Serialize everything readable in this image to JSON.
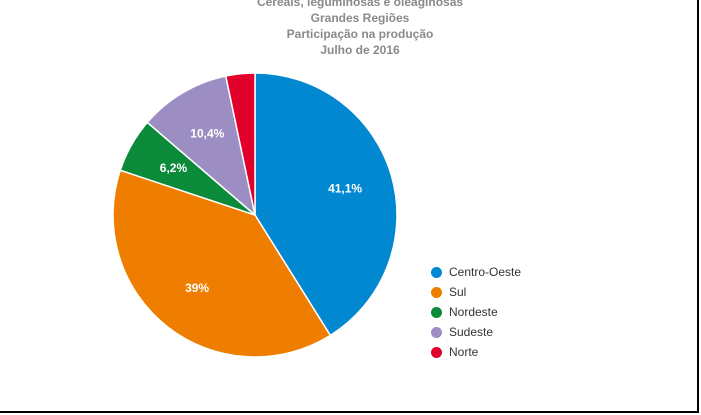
{
  "chart_data": {
    "type": "pie",
    "title": [
      "Cereais, leguminosas e oleaginosas",
      "Grandes Regiões",
      "Participação na produção",
      "Julho de 2016"
    ],
    "categories": [
      "Centro-Oeste",
      "Sul",
      "Nordeste",
      "Sudeste",
      "Norte"
    ],
    "values": [
      41.1,
      39.0,
      6.2,
      10.4,
      3.3
    ],
    "data_labels": [
      "41,1%",
      "39%",
      "6,2%",
      "10,4%",
      ""
    ],
    "colors": [
      "#0288d1",
      "#ef7d00",
      "#0b8a3a",
      "#9c8ec2",
      "#e0002a"
    ],
    "legend": {
      "position": "right"
    }
  }
}
